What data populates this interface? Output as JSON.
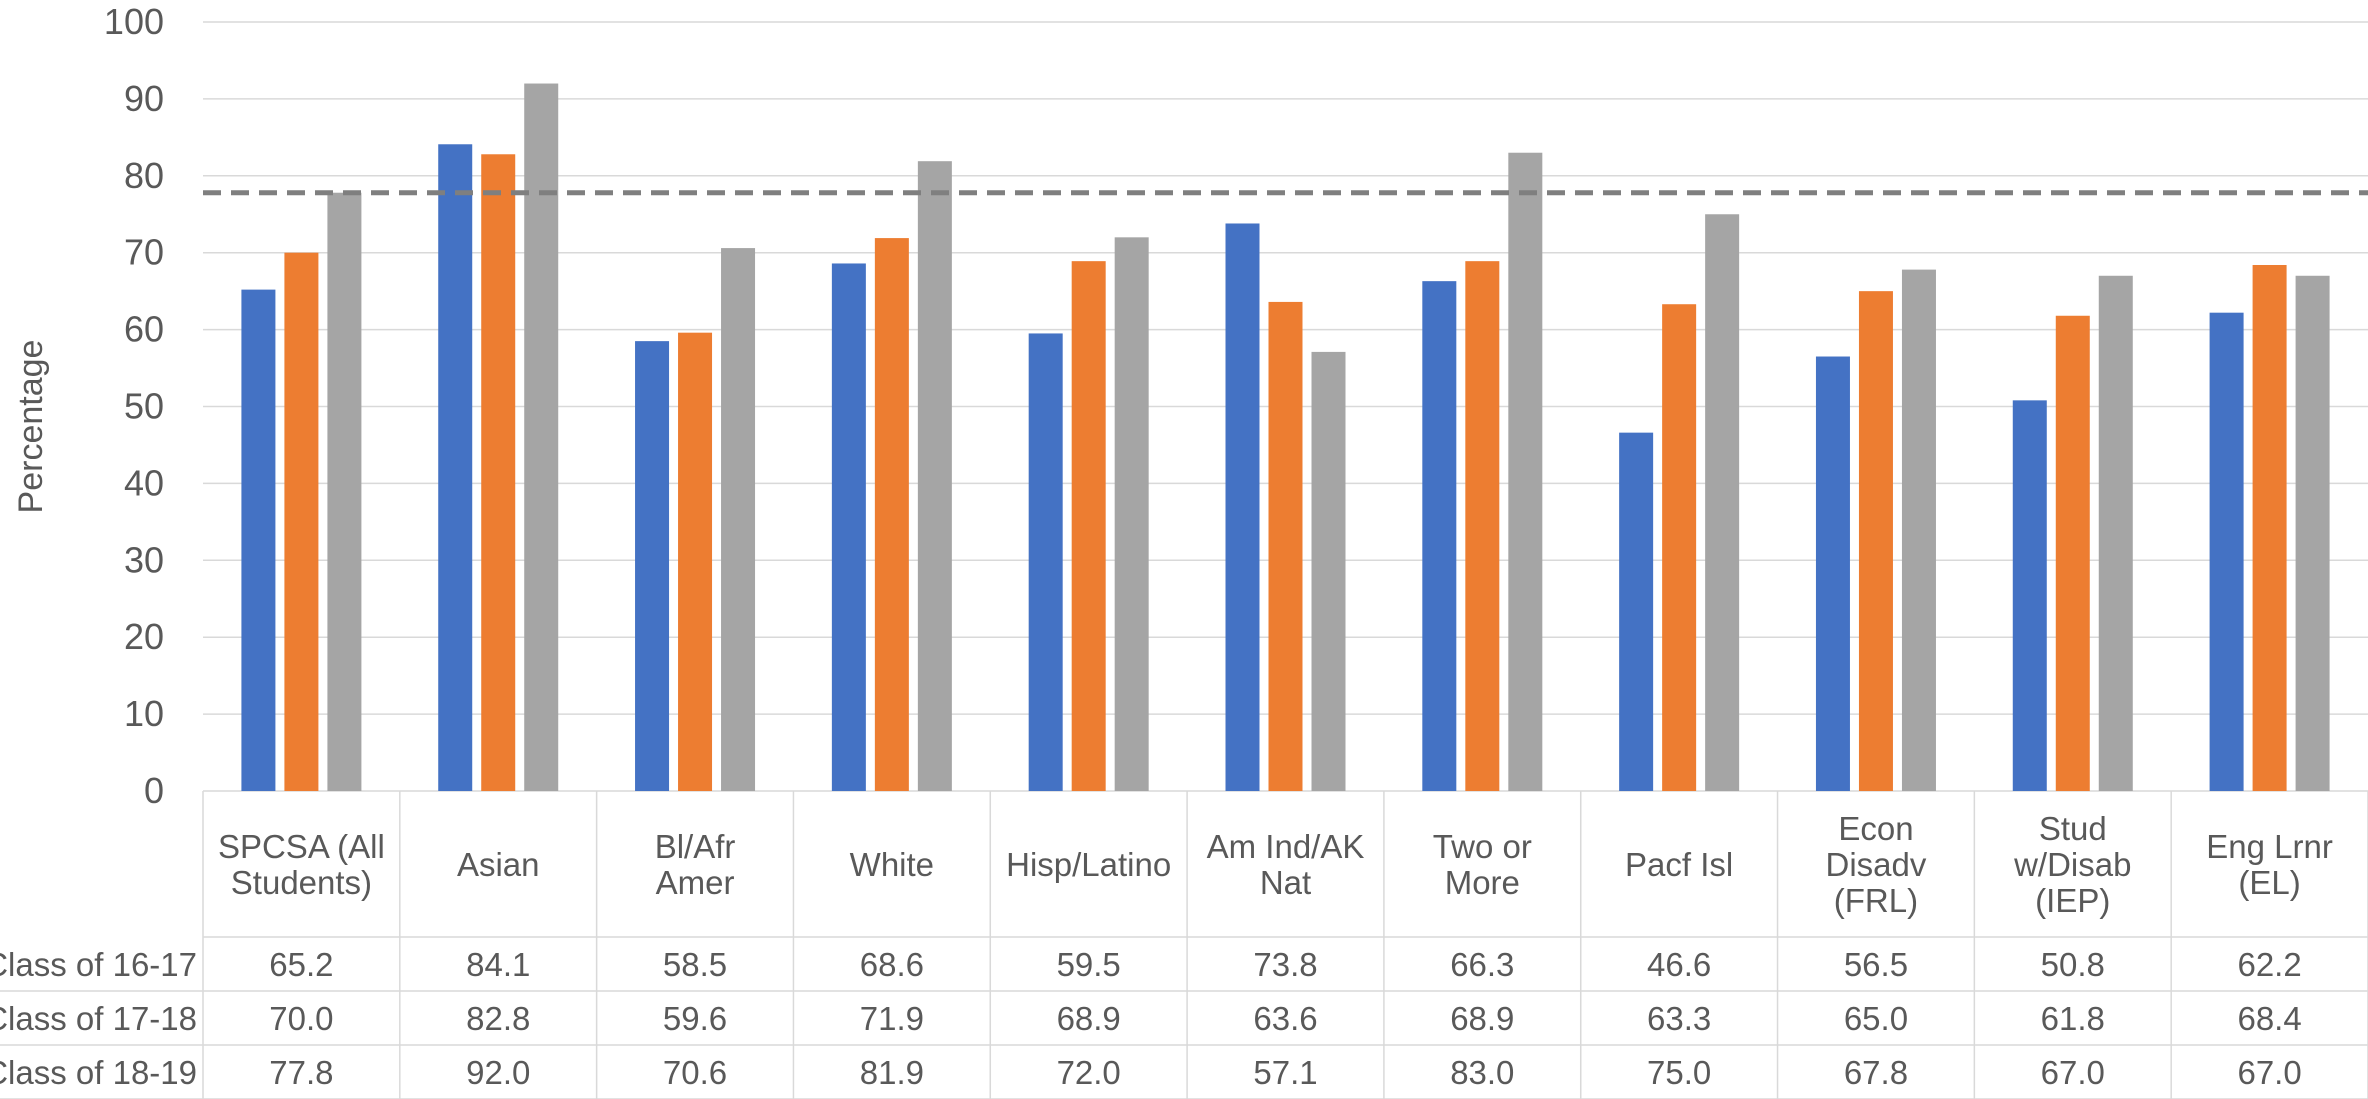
{
  "chart_data": {
    "type": "bar",
    "ylabel": "Percentage",
    "ylim": [
      0,
      100
    ],
    "yticks": [
      0,
      10,
      20,
      30,
      40,
      50,
      60,
      70,
      80,
      90,
      100
    ],
    "grid": true,
    "reference_line": 77.8,
    "categories": [
      [
        "SPCSA (All",
        "Students)"
      ],
      [
        "Asian"
      ],
      [
        "Bl/Afr",
        "Amer"
      ],
      [
        "White"
      ],
      [
        "Hisp/Latino"
      ],
      [
        "Am Ind/AK",
        "Nat"
      ],
      [
        "Two or",
        "More"
      ],
      [
        "Pacf Isl"
      ],
      [
        "Econ",
        "Disadv",
        "(FRL)"
      ],
      [
        "Stud",
        "w/Disab",
        "(IEP)"
      ],
      [
        "Eng Lrnr",
        "(EL)"
      ]
    ],
    "series": [
      {
        "name": "Class of 16-17",
        "color": "#4472C4",
        "values": [
          65.2,
          84.1,
          58.5,
          68.6,
          59.5,
          73.8,
          66.3,
          46.6,
          56.5,
          50.8,
          62.2
        ],
        "labels": [
          "65.2",
          "84.1",
          "58.5",
          "68.6",
          "59.5",
          "73.8",
          "66.3",
          "46.6",
          "56.5",
          "50.8",
          "62.2"
        ]
      },
      {
        "name": "Class of 17-18",
        "color": "#ED7D31",
        "values": [
          70.0,
          82.8,
          59.6,
          71.9,
          68.9,
          63.6,
          68.9,
          63.3,
          65.0,
          61.8,
          68.4
        ],
        "labels": [
          "70.0",
          "82.8",
          "59.6",
          "71.9",
          "68.9",
          "63.6",
          "68.9",
          "63.3",
          "65.0",
          "61.8",
          "68.4"
        ]
      },
      {
        "name": "Class of 18-19",
        "color": "#A5A5A5",
        "values": [
          77.8,
          92.0,
          70.6,
          81.9,
          72.0,
          57.1,
          83.0,
          75.0,
          67.8,
          67.0,
          67.0
        ],
        "labels": [
          "77.8",
          "92.0",
          "70.6",
          "81.9",
          "72.0",
          "57.1",
          "83.0",
          "75.0",
          "67.8",
          "67.0",
          "67.0"
        ]
      }
    ]
  }
}
